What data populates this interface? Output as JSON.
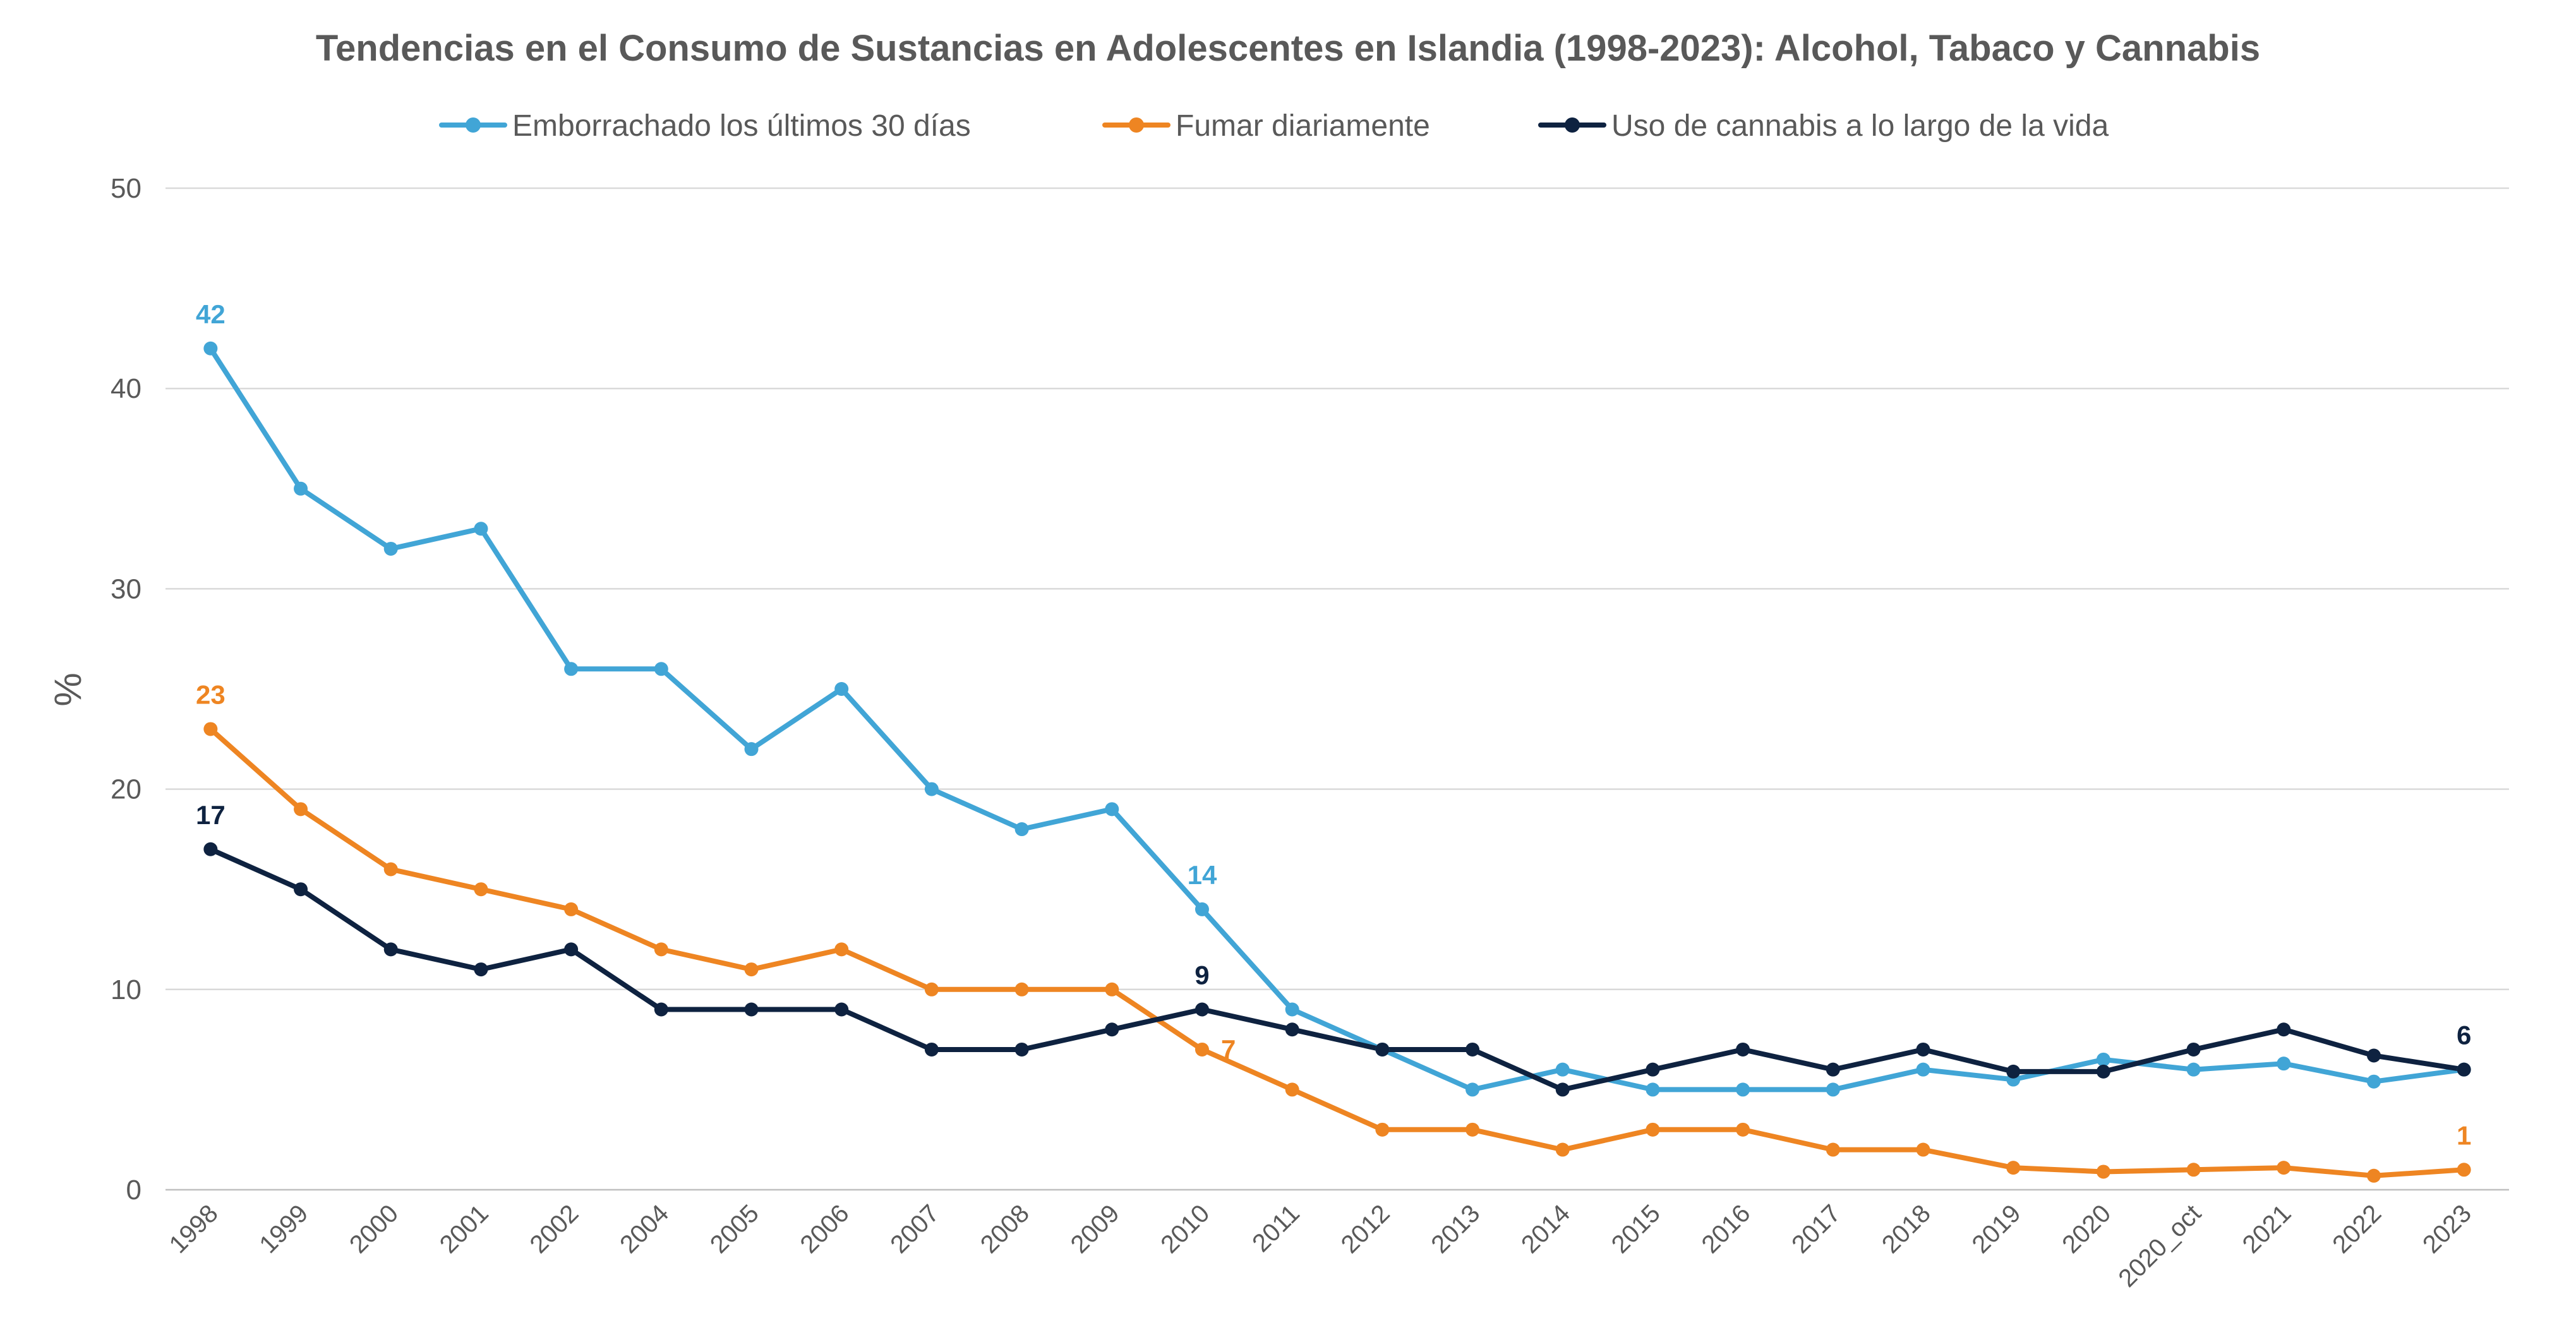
{
  "chart_data": {
    "type": "line",
    "title": "Tendencias en el Consumo de Sustancias en Adolescentes en Islandia (1998-2023): Alcohol, Tabaco y Cannabis",
    "xlabel": "",
    "ylabel": "%",
    "ylim": [
      0,
      50
    ],
    "yticks": [
      0,
      10,
      20,
      30,
      40,
      50
    ],
    "grid": true,
    "legend_position": "top",
    "categories": [
      "1998",
      "1999",
      "2000",
      "2001",
      "2002",
      "2004",
      "2005",
      "2006",
      "2007",
      "2008",
      "2009",
      "2010",
      "2011",
      "2012",
      "2013",
      "2014",
      "2015",
      "2016",
      "2017",
      "2018",
      "2019",
      "2020",
      "2020_oct",
      "2021",
      "2022",
      "2023"
    ],
    "series": [
      {
        "name": "Emborrachado los últimos 30 días",
        "color": "#41A5D6",
        "values": [
          42,
          35,
          32,
          33,
          26,
          26,
          22,
          25,
          20,
          18,
          19,
          14,
          9,
          7,
          5,
          6,
          5,
          5,
          5,
          6,
          5.5,
          6.5,
          6,
          6.3,
          5.4,
          6
        ],
        "data_labels": [
          {
            "index": 0,
            "text": "42",
            "position": "above"
          },
          {
            "index": 11,
            "text": "14",
            "position": "above"
          }
        ]
      },
      {
        "name": "Fumar diariamente",
        "color": "#EE8522",
        "values": [
          23,
          19,
          16,
          15,
          14,
          12,
          11,
          12,
          10,
          10,
          10,
          7,
          5,
          3,
          3,
          2,
          3,
          3,
          2,
          2,
          1.1,
          0.9,
          1,
          1.1,
          0.7,
          1
        ],
        "data_labels": [
          {
            "index": 0,
            "text": "23",
            "position": "above"
          },
          {
            "index": 11,
            "text": "7",
            "position": "right"
          },
          {
            "index": 25,
            "text": "1",
            "position": "above"
          }
        ]
      },
      {
        "name": "Uso de cannabis a lo largo de la vida",
        "color": "#0E2240",
        "values": [
          17,
          15,
          12,
          11,
          12,
          9,
          9,
          9,
          7,
          7,
          8,
          9,
          8,
          7,
          7,
          5,
          6,
          7,
          6,
          7,
          5.9,
          5.9,
          7,
          8,
          6.7,
          6
        ],
        "data_labels": [
          {
            "index": 0,
            "text": "17",
            "position": "above"
          },
          {
            "index": 11,
            "text": "9",
            "position": "above"
          },
          {
            "index": 25,
            "text": "6",
            "position": "above"
          }
        ]
      }
    ]
  }
}
